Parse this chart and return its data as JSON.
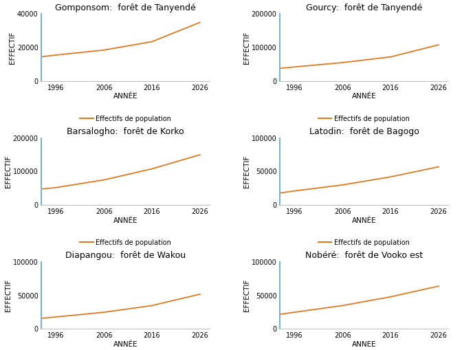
{
  "subplots": [
    {
      "title": "Gomponsom:  forêt de Tanyendé",
      "xlabel": "ANNÉE",
      "ylabel": "EFFECTIF",
      "years": [
        1993,
        1996,
        2006,
        2016,
        2026
      ],
      "values": [
        14500,
        15500,
        18500,
        23500,
        35000
      ],
      "ylim": [
        0,
        40000
      ],
      "yticks": [
        0,
        20000,
        40000
      ],
      "xticks": [
        1996,
        2006,
        2016,
        2026
      ]
    },
    {
      "title": "Gourcy:  forêt de Tanyendé",
      "xlabel": "ANNÉE",
      "ylabel": "EFFECTIF",
      "years": [
        1993,
        1996,
        2006,
        2016,
        2026
      ],
      "values": [
        38000,
        42000,
        55000,
        72000,
        108000
      ],
      "ylim": [
        0,
        200000
      ],
      "yticks": [
        0,
        100000,
        200000
      ],
      "xticks": [
        1996,
        2006,
        2016,
        2026
      ]
    },
    {
      "title": "Barsalogho:  forêt de Korko",
      "xlabel": "ANNÉE",
      "ylabel": "EFFECTIF",
      "years": [
        1993,
        1996,
        2006,
        2016,
        2026
      ],
      "values": [
        48000,
        52000,
        75000,
        108000,
        150000
      ],
      "ylim": [
        0,
        200000
      ],
      "yticks": [
        0,
        100000,
        200000
      ],
      "xticks": [
        1996,
        2006,
        2016,
        2026
      ]
    },
    {
      "title": "Latodin:  forêt de Bagogo",
      "xlabel": "ANNÉE",
      "ylabel": "EFFECTIF",
      "years": [
        1993,
        1996,
        2006,
        2016,
        2026
      ],
      "values": [
        18000,
        21000,
        30000,
        42000,
        57000
      ],
      "ylim": [
        0,
        100000
      ],
      "yticks": [
        0,
        50000,
        100000
      ],
      "xticks": [
        1996,
        2006,
        2016,
        2026
      ]
    },
    {
      "title": "Diapangou:  forêt de Wakou",
      "xlabel": "ANNÉE",
      "ylabel": "EFFECTIF",
      "years": [
        1993,
        1996,
        2006,
        2016,
        2026
      ],
      "values": [
        16000,
        18000,
        25000,
        35000,
        52000
      ],
      "ylim": [
        0,
        100000
      ],
      "yticks": [
        0,
        50000,
        100000
      ],
      "xticks": [
        1996,
        2006,
        2016,
        2026
      ]
    },
    {
      "title": "Nobéré:  forêt de Vooko est",
      "xlabel": "ANNEE",
      "ylabel": "EFFECTIF",
      "years": [
        1993,
        1996,
        2006,
        2016,
        2026
      ],
      "values": [
        22000,
        25000,
        35000,
        48000,
        64000
      ],
      "ylim": [
        0,
        100000
      ],
      "yticks": [
        0,
        50000,
        100000
      ],
      "xticks": [
        1996,
        2006,
        2016,
        2026
      ]
    }
  ],
  "line_color": "#E07820",
  "legend_label": "Effectifs de population",
  "background_color": "#ffffff",
  "title_fontsize": 9,
  "axis_label_fontsize": 7.5,
  "tick_fontsize": 7,
  "left_spine_color": "#7BAFD4",
  "bottom_spine_color": "#C0C0C0"
}
